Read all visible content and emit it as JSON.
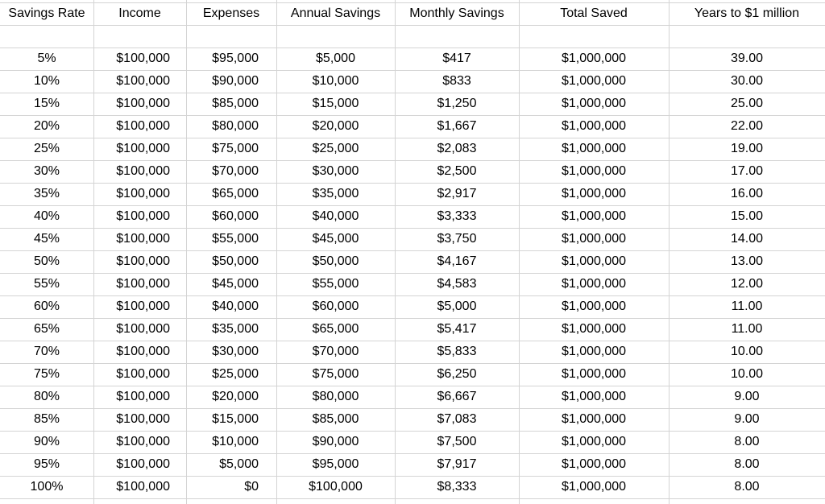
{
  "table": {
    "header": [
      "Savings Rate",
      "Income",
      "Expenses",
      "Annual Savings",
      "Monthly Savings",
      "Total Saved",
      "Years to $1 million"
    ],
    "rows": [
      [
        "5%",
        "$100,000",
        "$95,000",
        "$5,000",
        "$417",
        "$1,000,000",
        "39.00"
      ],
      [
        "10%",
        "$100,000",
        "$90,000",
        "$10,000",
        "$833",
        "$1,000,000",
        "30.00"
      ],
      [
        "15%",
        "$100,000",
        "$85,000",
        "$15,000",
        "$1,250",
        "$1,000,000",
        "25.00"
      ],
      [
        "20%",
        "$100,000",
        "$80,000",
        "$20,000",
        "$1,667",
        "$1,000,000",
        "22.00"
      ],
      [
        "25%",
        "$100,000",
        "$75,000",
        "$25,000",
        "$2,083",
        "$1,000,000",
        "19.00"
      ],
      [
        "30%",
        "$100,000",
        "$70,000",
        "$30,000",
        "$2,500",
        "$1,000,000",
        "17.00"
      ],
      [
        "35%",
        "$100,000",
        "$65,000",
        "$35,000",
        "$2,917",
        "$1,000,000",
        "16.00"
      ],
      [
        "40%",
        "$100,000",
        "$60,000",
        "$40,000",
        "$3,333",
        "$1,000,000",
        "15.00"
      ],
      [
        "45%",
        "$100,000",
        "$55,000",
        "$45,000",
        "$3,750",
        "$1,000,000",
        "14.00"
      ],
      [
        "50%",
        "$100,000",
        "$50,000",
        "$50,000",
        "$4,167",
        "$1,000,000",
        "13.00"
      ],
      [
        "55%",
        "$100,000",
        "$45,000",
        "$55,000",
        "$4,583",
        "$1,000,000",
        "12.00"
      ],
      [
        "60%",
        "$100,000",
        "$40,000",
        "$60,000",
        "$5,000",
        "$1,000,000",
        "11.00"
      ],
      [
        "65%",
        "$100,000",
        "$35,000",
        "$65,000",
        "$5,417",
        "$1,000,000",
        "11.00"
      ],
      [
        "70%",
        "$100,000",
        "$30,000",
        "$70,000",
        "$5,833",
        "$1,000,000",
        "10.00"
      ],
      [
        "75%",
        "$100,000",
        "$25,000",
        "$75,000",
        "$6,250",
        "$1,000,000",
        "10.00"
      ],
      [
        "80%",
        "$100,000",
        "$20,000",
        "$80,000",
        "$6,667",
        "$1,000,000",
        "9.00"
      ],
      [
        "85%",
        "$100,000",
        "$15,000",
        "$85,000",
        "$7,083",
        "$1,000,000",
        "9.00"
      ],
      [
        "90%",
        "$100,000",
        "$10,000",
        "$90,000",
        "$7,500",
        "$1,000,000",
        "8.00"
      ],
      [
        "95%",
        "$100,000",
        "$5,000",
        "$95,000",
        "$7,917",
        "$1,000,000",
        "8.00"
      ],
      [
        "100%",
        "$100,000",
        "$0",
        "$100,000",
        "$8,333",
        "$1,000,000",
        "8.00"
      ]
    ]
  }
}
